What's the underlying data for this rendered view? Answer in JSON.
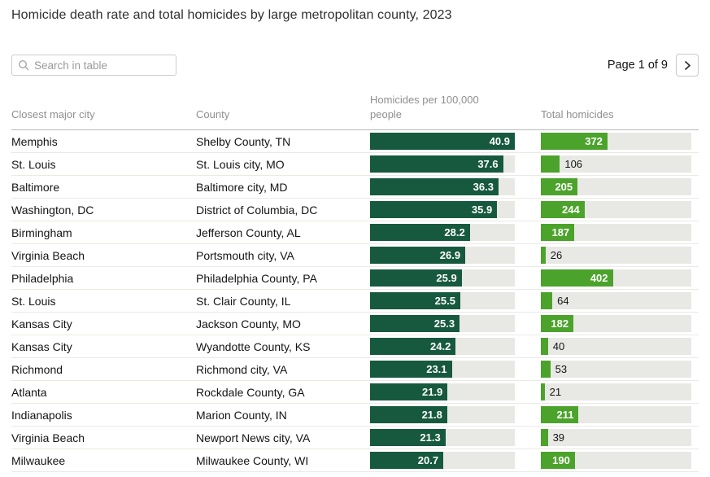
{
  "title": "Homicide death rate and total homicides by large metropolitan county, 2023",
  "toolbar": {
    "search_placeholder": "Search in table",
    "page_label": "Page 1 of 9"
  },
  "colors": {
    "rate_bar": "#17593f",
    "total_bar": "#4ca32b",
    "bar_track": "#e8e8e4"
  },
  "chart_data": {
    "type": "table",
    "title": "Homicide death rate and total homicides by large metropolitan county, 2023",
    "columns": [
      "Closest major city",
      "County",
      "Homicides per 100,000 people",
      "Total homicides"
    ],
    "headers": {
      "city": "Closest major city",
      "county": "County",
      "rate": "Homicides per 100,000 people",
      "total": "Total homicides"
    },
    "rate_axis_max": 40.9,
    "total_axis_max": 840,
    "rows": [
      {
        "city": "Memphis",
        "county": "Shelby County, TN",
        "rate": 40.9,
        "total": 372
      },
      {
        "city": "St. Louis",
        "county": "St. Louis city, MO",
        "rate": 37.6,
        "total": 106
      },
      {
        "city": "Baltimore",
        "county": "Baltimore city, MD",
        "rate": 36.3,
        "total": 205
      },
      {
        "city": "Washington, DC",
        "county": "District of Columbia, DC",
        "rate": 35.9,
        "total": 244
      },
      {
        "city": "Birmingham",
        "county": "Jefferson County, AL",
        "rate": 28.2,
        "total": 187
      },
      {
        "city": "Virginia Beach",
        "county": "Portsmouth city, VA",
        "rate": 26.9,
        "total": 26
      },
      {
        "city": "Philadelphia",
        "county": "Philadelphia County, PA",
        "rate": 25.9,
        "total": 402
      },
      {
        "city": "St. Louis",
        "county": "St. Clair County, IL",
        "rate": 25.5,
        "total": 64
      },
      {
        "city": "Kansas City",
        "county": "Jackson County, MO",
        "rate": 25.3,
        "total": 182
      },
      {
        "city": "Kansas City",
        "county": "Wyandotte County, KS",
        "rate": 24.2,
        "total": 40
      },
      {
        "city": "Richmond",
        "county": "Richmond city, VA",
        "rate": 23.1,
        "total": 53
      },
      {
        "city": "Atlanta",
        "county": "Rockdale County, GA",
        "rate": 21.9,
        "total": 21
      },
      {
        "city": "Indianapolis",
        "county": "Marion County, IN",
        "rate": 21.8,
        "total": 211
      },
      {
        "city": "Virginia Beach",
        "county": "Newport News city, VA",
        "rate": 21.3,
        "total": 39
      },
      {
        "city": "Milwaukee",
        "county": "Milwaukee County, WI",
        "rate": 20.7,
        "total": 190
      }
    ]
  }
}
